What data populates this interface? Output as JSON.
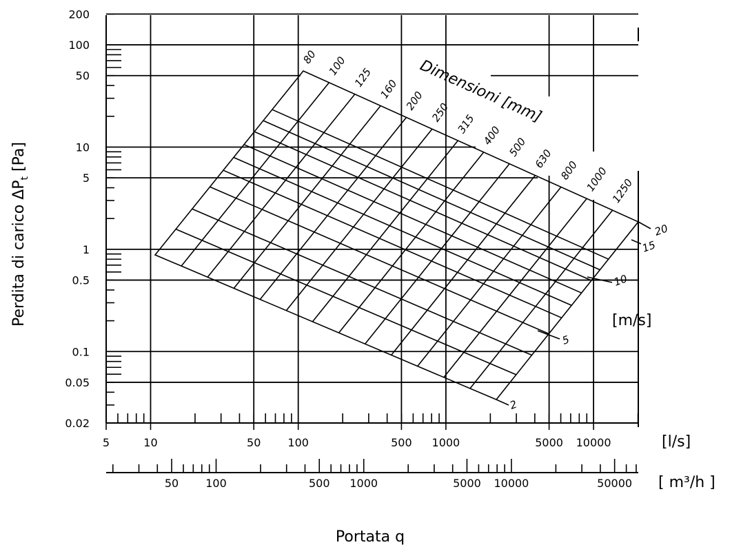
{
  "chart_data": {
    "type": "nomogram",
    "y_axis": {
      "label": "Perdita di carico",
      "symbol": "ΔP",
      "symbol_sub": "t",
      "unit": "[Pa]",
      "scale": "log",
      "range": [
        0.02,
        200
      ],
      "ticks": [
        200,
        100,
        50,
        10,
        5,
        1,
        0.5,
        0.1,
        0.05,
        0.02
      ],
      "tick_labels": [
        "200",
        "100",
        "50",
        "10",
        "5",
        "1",
        "0.5",
        "0.1",
        "0.05",
        "0.02"
      ]
    },
    "x_axis_ls": {
      "unit": "[l/s]",
      "scale": "log",
      "range": [
        5,
        20000
      ],
      "ticks": [
        5,
        10,
        50,
        100,
        500,
        1000,
        5000,
        10000
      ],
      "tick_labels": [
        "5",
        "10",
        "50",
        "100",
        "500",
        "1000",
        "5000",
        "10000"
      ]
    },
    "x_axis_m3h": {
      "unit": "[ m³/h ]",
      "scale": "log",
      "range": [
        18,
        72000
      ],
      "ticks": [
        50,
        100,
        500,
        1000,
        5000,
        10000,
        50000
      ],
      "tick_labels": [
        "50",
        "100",
        "500",
        "1000",
        "5000",
        "10000",
        "50000"
      ]
    },
    "x_title": "Portata q",
    "diameter_title": "Dimensioni [mm]",
    "diameters_mm": [
      "80",
      "100",
      "125",
      "160",
      "200",
      "250",
      "315",
      "400",
      "500",
      "630",
      "800",
      "1000",
      "1250"
    ],
    "velocity_unit": "[m/s]",
    "velocity_labels": [
      "20",
      "15",
      "10",
      "5",
      "2"
    ],
    "grid": true
  }
}
